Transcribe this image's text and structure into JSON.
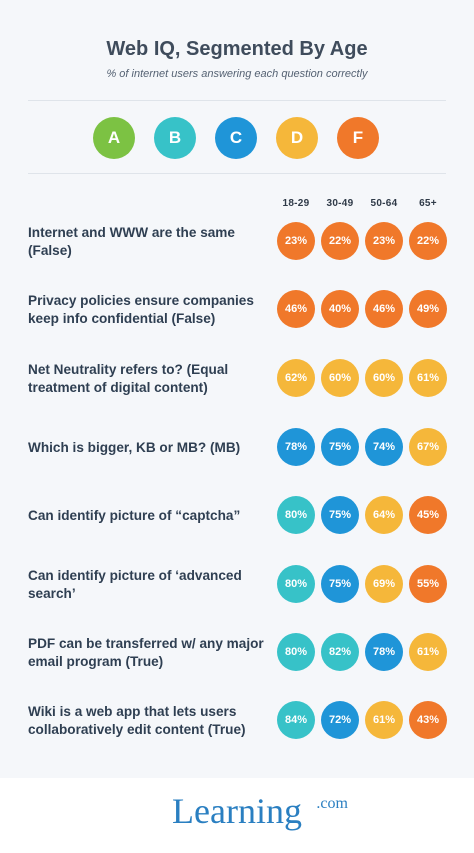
{
  "header": {
    "title": "Web IQ, Segmented By Age",
    "subtitle": "% of internet users answering each question correctly"
  },
  "legend": [
    {
      "label": "A",
      "color": "#7cc243"
    },
    {
      "label": "B",
      "color": "#37c2c8"
    },
    {
      "label": "C",
      "color": "#1f95d8"
    },
    {
      "label": "D",
      "color": "#f5b73a"
    },
    {
      "label": "F",
      "color": "#f0782a"
    }
  ],
  "chart_data": {
    "type": "table",
    "title": "Web IQ, Segmented By Age",
    "subtitle": "% of internet users answering each question correctly",
    "columns": [
      "18-29",
      "30-49",
      "50-64",
      "65+"
    ],
    "rows": [
      {
        "question": "Internet and WWW are the same (False)",
        "values": [
          "23%",
          "22%",
          "23%",
          "22%"
        ],
        "grades": [
          "F",
          "F",
          "F",
          "F"
        ]
      },
      {
        "question": "Privacy policies ensure companies keep info confidential (False)",
        "values": [
          "46%",
          "40%",
          "46%",
          "49%"
        ],
        "grades": [
          "F",
          "F",
          "F",
          "F"
        ]
      },
      {
        "question": "Net Neutrality refers to? (Equal treatment of digital content)",
        "values": [
          "62%",
          "60%",
          "60%",
          "61%"
        ],
        "grades": [
          "D",
          "D",
          "D",
          "D"
        ]
      },
      {
        "question": "Which is bigger, KB or MB? (MB)",
        "values": [
          "78%",
          "75%",
          "74%",
          "67%"
        ],
        "grades": [
          "C",
          "C",
          "C",
          "D"
        ]
      },
      {
        "question": "Can identify picture of “captcha”",
        "values": [
          "80%",
          "75%",
          "64%",
          "45%"
        ],
        "grades": [
          "B",
          "C",
          "D",
          "F"
        ]
      },
      {
        "question": "Can identify picture of ‘advanced search’",
        "values": [
          "80%",
          "75%",
          "69%",
          "55%"
        ],
        "grades": [
          "B",
          "C",
          "D",
          "F"
        ]
      },
      {
        "question": "PDF can be transferred w/ any major email program (True)",
        "values": [
          "80%",
          "82%",
          "78%",
          "61%"
        ],
        "grades": [
          "B",
          "B",
          "C",
          "D"
        ]
      },
      {
        "question": "Wiki is a web app that lets users collaboratively edit content (True)",
        "values": [
          "84%",
          "72%",
          "61%",
          "43%"
        ],
        "grades": [
          "B",
          "C",
          "D",
          "F"
        ]
      }
    ]
  },
  "footer": {
    "logo_word": "Learning",
    "logo_suffix": ".com"
  }
}
